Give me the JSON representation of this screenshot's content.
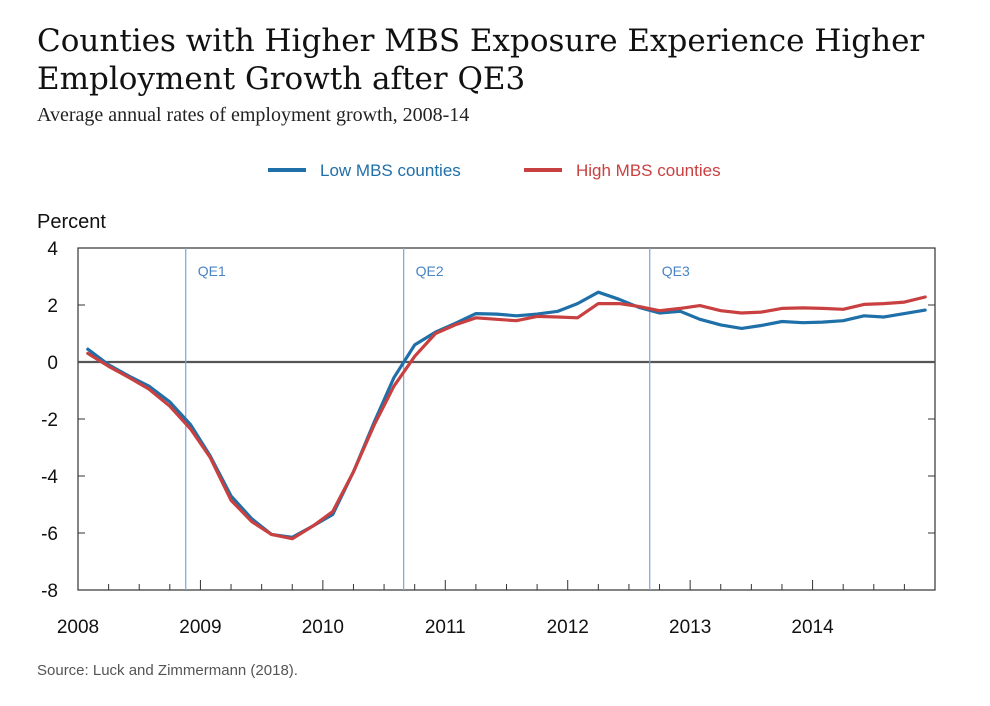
{
  "chart_data": {
    "type": "line",
    "title": "Counties with Higher MBS Exposure Experience Higher Employment Growth after QE3",
    "subtitle": "Average annual rates of employment growth, 2008-14",
    "ylabel": "Percent",
    "xlabel": "",
    "ylim": [
      -8,
      4
    ],
    "xlim": [
      2008,
      2015
    ],
    "yticks": [
      4,
      2,
      0,
      -2,
      -4,
      -6,
      -8
    ],
    "yticklabels": [
      "4",
      "2",
      "0",
      "-2",
      "-4",
      "-6",
      "-8"
    ],
    "xticks": [
      2008,
      2009,
      2010,
      2011,
      2012,
      2013,
      2014
    ],
    "xticklabels": [
      "2008",
      "2009",
      "2010",
      "2011",
      "2012",
      "2013",
      "2014"
    ],
    "grid": false,
    "legend_position": "top-center",
    "annotations": [
      {
        "label": "QE1",
        "x": 2008.88
      },
      {
        "label": "QE2",
        "x": 2010.66
      },
      {
        "label": "QE3",
        "x": 2012.67
      }
    ],
    "series": [
      {
        "name": "Low MBS counties",
        "color": "#1f6fa8",
        "x": [
          2008.08,
          2008.25,
          2008.42,
          2008.58,
          2008.75,
          2008.92,
          2009.08,
          2009.25,
          2009.42,
          2009.58,
          2009.75,
          2009.92,
          2010.08,
          2010.25,
          2010.42,
          2010.58,
          2010.75,
          2010.92,
          2011.08,
          2011.25,
          2011.42,
          2011.58,
          2011.75,
          2011.92,
          2012.08,
          2012.25,
          2012.42,
          2012.58,
          2012.75,
          2012.92,
          2013.08,
          2013.25,
          2013.42,
          2013.58,
          2013.75,
          2013.92,
          2014.08,
          2014.25,
          2014.42,
          2014.58,
          2014.75,
          2014.92
        ],
        "values": [
          0.45,
          -0.1,
          -0.5,
          -0.85,
          -1.4,
          -2.2,
          -3.3,
          -4.7,
          -5.5,
          -6.05,
          -6.15,
          -5.75,
          -5.35,
          -3.85,
          -2.1,
          -0.55,
          0.6,
          1.05,
          1.35,
          1.7,
          1.68,
          1.62,
          1.68,
          1.78,
          2.05,
          2.45,
          2.2,
          1.92,
          1.72,
          1.78,
          1.5,
          1.3,
          1.18,
          1.28,
          1.42,
          1.38,
          1.4,
          1.45,
          1.62,
          1.58,
          1.7,
          1.82
        ]
      },
      {
        "name": "High MBS counties",
        "color": "#c94040",
        "x": [
          2008.08,
          2008.25,
          2008.42,
          2008.58,
          2008.75,
          2008.92,
          2009.08,
          2009.25,
          2009.42,
          2009.58,
          2009.75,
          2009.92,
          2010.08,
          2010.25,
          2010.42,
          2010.58,
          2010.75,
          2010.92,
          2011.08,
          2011.25,
          2011.42,
          2011.58,
          2011.75,
          2011.92,
          2012.08,
          2012.25,
          2012.42,
          2012.58,
          2012.75,
          2012.92,
          2013.08,
          2013.25,
          2013.42,
          2013.58,
          2013.75,
          2013.92,
          2014.08,
          2014.25,
          2014.42,
          2014.58,
          2014.75,
          2014.92
        ],
        "values": [
          0.3,
          -0.15,
          -0.55,
          -0.95,
          -1.55,
          -2.35,
          -3.35,
          -4.85,
          -5.6,
          -6.05,
          -6.2,
          -5.75,
          -5.25,
          -3.85,
          -2.2,
          -0.85,
          0.2,
          1.0,
          1.3,
          1.55,
          1.5,
          1.45,
          1.6,
          1.58,
          1.55,
          2.05,
          2.05,
          1.95,
          1.8,
          1.88,
          1.98,
          1.8,
          1.72,
          1.75,
          1.88,
          1.9,
          1.88,
          1.85,
          2.02,
          2.05,
          2.1,
          2.28
        ]
      }
    ],
    "source": "Source: Luck and Zimmermann (2018)."
  }
}
